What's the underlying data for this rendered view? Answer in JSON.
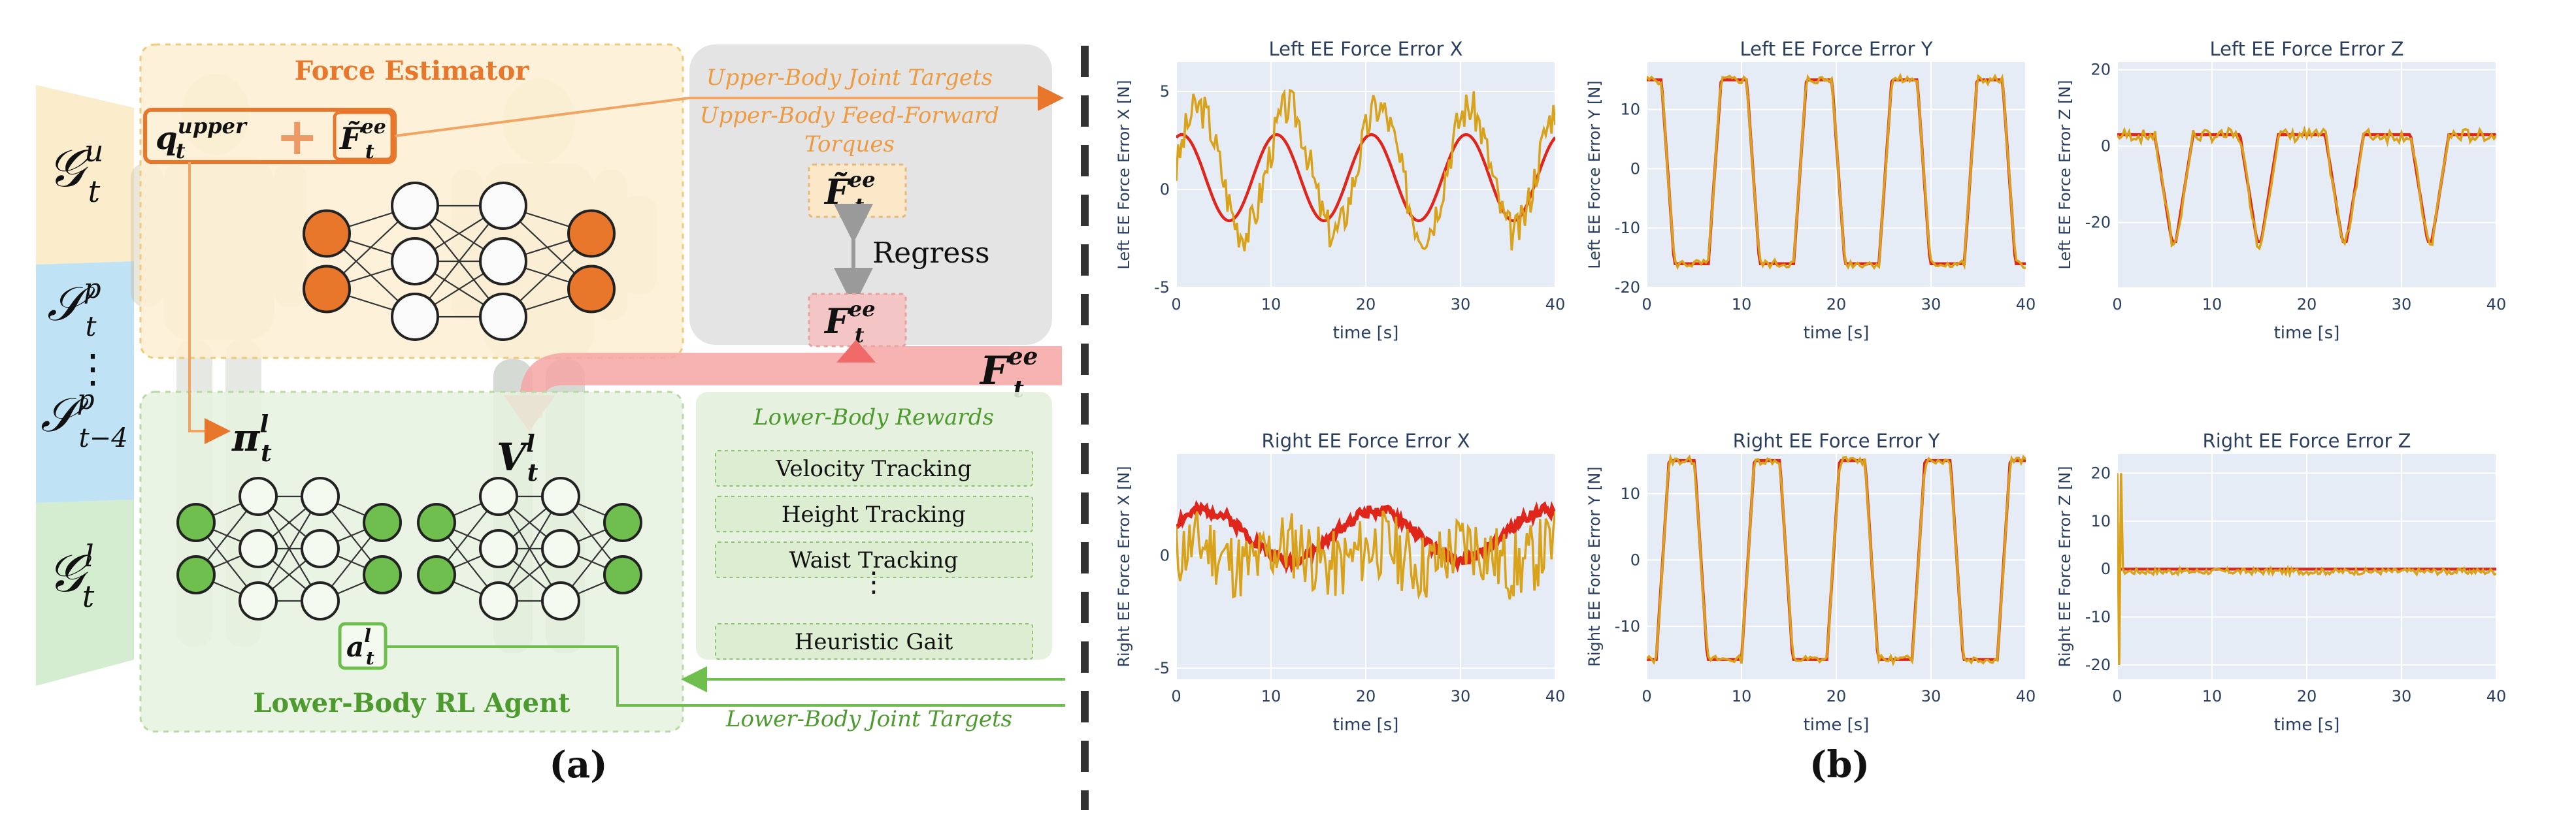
{
  "panel_a": {
    "label": "(a)",
    "force_estimator_title": "Force Estimator",
    "upper_joint_targets": "Upper-Body Joint Targets",
    "upper_ff_torques_1": "Upper-Body Feed-Forward",
    "upper_ff_torques_2": "Torques",
    "regress": "Regress",
    "lower_rewards_title": "Lower-Body Rewards",
    "rewards": [
      "Velocity Tracking",
      "Height Tracking",
      "Waist Tracking",
      "⋮",
      "Heuristic Gait"
    ],
    "agent_title": "Lower-Body RL Agent",
    "lower_joint_targets": "Lower-Body Joint Targets",
    "side_labels": {
      "g_upper": "𝒢",
      "g_upper_sup": "u",
      "s_t": "𝒮",
      "s_t_sup": "p",
      "dots": "⋮",
      "s_t4": "𝒮",
      "s_t4_sup": "p",
      "s_t4_sub": "t−4",
      "g_lower": "𝒢",
      "g_lower_sup": "l",
      "sub_t": "t"
    },
    "symbols": {
      "q": "q",
      "q_sup": "upper",
      "f_hat": "F̃",
      "f": "F",
      "ee": "ee",
      "pi": "π",
      "v": "V",
      "a": "a",
      "l": "l",
      "t": "t"
    },
    "colors": {
      "orange": "#e8762b",
      "green": "#6fbf4e",
      "red_band": "#f6a4a4"
    }
  },
  "panel_b": {
    "label": "(b)",
    "colors": {
      "target": "#e0251b",
      "actual": "#d9a21b",
      "plot_bg": "#e6ecf5",
      "grid": "#ffffff"
    }
  },
  "chart_data": [
    {
      "type": "line",
      "title": "Left EE Force Error X",
      "ylabel": "Left EE Force Error X [N]",
      "xlabel": "time [s]",
      "xlim": [
        0,
        40
      ],
      "ylim": [
        -5,
        6.5
      ],
      "xticks": [
        0,
        10,
        20,
        30,
        40
      ],
      "yticks": [
        -5,
        0,
        5
      ],
      "target": {
        "kind": "sine",
        "amp": 2.2,
        "offset": 0.6,
        "period": 10,
        "phase": 1.2
      },
      "actual": {
        "kind": "noisy",
        "amp": 3.2,
        "offset": 1.0,
        "noise": 2.0,
        "seed": 3
      }
    },
    {
      "type": "line",
      "title": "Left EE Force Error Y",
      "ylabel": "Left EE Force Error Y [N]",
      "xlabel": "time [s]",
      "xlim": [
        0,
        40
      ],
      "ylim": [
        -20,
        18
      ],
      "xticks": [
        0,
        10,
        20,
        30,
        40
      ],
      "yticks": [
        -20,
        -10,
        0,
        10
      ],
      "target": {
        "kind": "trap",
        "low": -16,
        "high": 15,
        "period": 9,
        "phase": 2.5
      },
      "actual": {
        "kind": "trap",
        "low": -16,
        "high": 15,
        "period": 9,
        "phase": 2.5,
        "noise": 1.5,
        "seed": 5
      }
    },
    {
      "type": "line",
      "title": "Left EE Force Error Z",
      "ylabel": "Left EE Force Error Z [N]",
      "xlabel": "time [s]",
      "xlim": [
        0,
        40
      ],
      "ylim": [
        -37,
        22
      ],
      "xticks": [
        0,
        10,
        20,
        30,
        40
      ],
      "yticks": [
        -20,
        0,
        20
      ],
      "target": {
        "kind": "dip",
        "high": 3,
        "low": -25,
        "period": 9,
        "phase": 1.0
      },
      "actual": {
        "kind": "dip",
        "high": 3,
        "low": -25,
        "period": 9,
        "phase": 1.0,
        "noise": 3.5,
        "seed": 7
      }
    },
    {
      "type": "line",
      "title": "Right EE Force Error X",
      "ylabel": "Right EE Force Error X [N]",
      "xlabel": "time [s]",
      "xlim": [
        0,
        40
      ],
      "ylim": [
        -5.5,
        4.5
      ],
      "xticks": [
        0,
        10,
        20,
        30,
        40
      ],
      "yticks": [
        -5,
        0
      ],
      "target": {
        "kind": "band",
        "amp": 1.1,
        "offset": 0.9,
        "period": 18,
        "phase": 0.5,
        "noise": 0.5,
        "seed": 2
      },
      "actual": {
        "kind": "noisy",
        "amp": 0.5,
        "offset": 0.0,
        "noise": 3.2,
        "seed": 11
      }
    },
    {
      "type": "line",
      "title": "Right EE Force Error Y",
      "ylabel": "Right EE Force Error Y [N]",
      "xlabel": "time [s]",
      "xlim": [
        0,
        40
      ],
      "ylim": [
        -18,
        16
      ],
      "xticks": [
        0,
        10,
        20,
        30,
        40
      ],
      "yticks": [
        -10,
        0,
        10
      ],
      "target": {
        "kind": "trap",
        "low": -15,
        "high": 15,
        "period": 9,
        "phase": -1.0
      },
      "actual": {
        "kind": "trap",
        "low": -15,
        "high": 15,
        "period": 9,
        "phase": -1.0,
        "noise": 1.2,
        "seed": 13
      }
    },
    {
      "type": "line",
      "title": "Right EE Force Error Z",
      "ylabel": "Right EE Force Error Z [N]",
      "xlabel": "time [s]",
      "xlim": [
        0,
        40
      ],
      "ylim": [
        -23,
        24
      ],
      "xticks": [
        0,
        10,
        20,
        30,
        40
      ],
      "yticks": [
        -20,
        -10,
        0,
        10,
        20
      ],
      "target": {
        "kind": "flat",
        "offset": 0
      },
      "actual": {
        "kind": "noisy",
        "amp": 0.0,
        "offset": -0.5,
        "noise": 1.3,
        "seed": 17,
        "spike": true
      }
    }
  ]
}
